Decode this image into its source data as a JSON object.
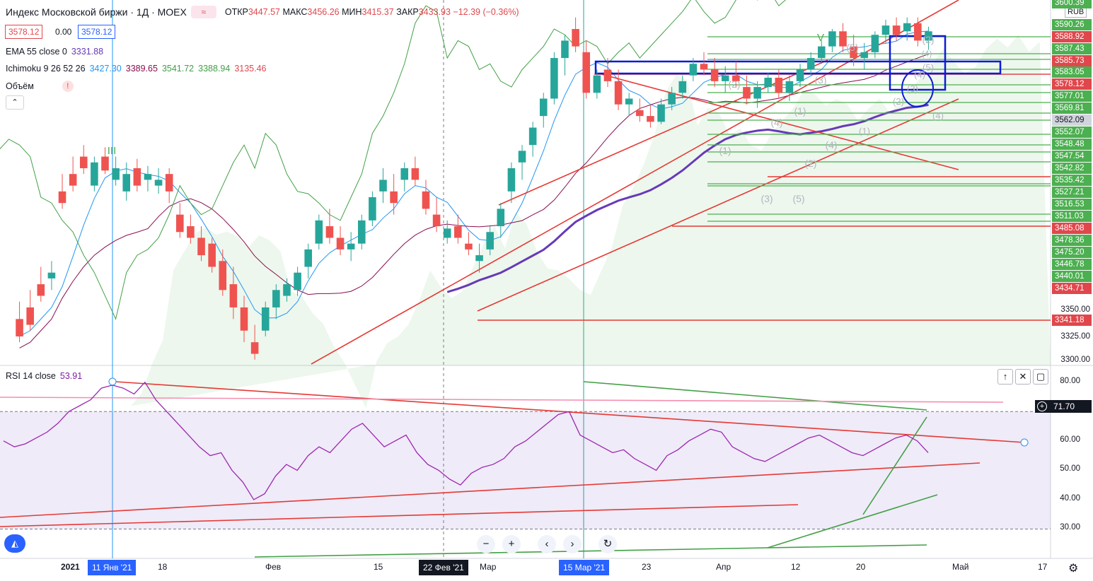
{
  "header": {
    "title": "Индекс Московской биржи · 1Д · MOEX",
    "ohlc": [
      {
        "label": "ОТКР",
        "value": "3447.57"
      },
      {
        "label": "МАКС",
        "value": "3456.26"
      },
      {
        "label": "МИН",
        "value": "3415.37"
      },
      {
        "label": "ЗАКР",
        "value": "3433.93"
      }
    ],
    "change": "−12.39 (−0.36%)",
    "bid": "3578.12",
    "spread": "0.00",
    "ask": "3578.12",
    "currency": "RUB"
  },
  "indicators": {
    "ema": {
      "label": "EMA 55 close 0",
      "value": "3331.88"
    },
    "ichimoku": {
      "label": "Ichimoku 9 26 52 26",
      "values": [
        "3427.30",
        "3389.65",
        "3541.72",
        "3388.94",
        "3135.46"
      ]
    },
    "volume": {
      "label": "Объём"
    },
    "rsi": {
      "label": "RSI 14 close",
      "value": "53.91",
      "current_tag": "71.70"
    }
  },
  "price_axis": {
    "tags": [
      {
        "value": "3600.39",
        "color": "#4caf50"
      },
      {
        "value": "3590.26",
        "color": "#4caf50"
      },
      {
        "value": "3588.92",
        "color": "#e0474c"
      },
      {
        "value": "3587.43",
        "color": "#4caf50"
      },
      {
        "value": "3585.73",
        "color": "#e0474c"
      },
      {
        "value": "3583.05",
        "color": "#4caf50"
      },
      {
        "value": "3578.12",
        "color": "#e0474c"
      },
      {
        "value": "3577.01",
        "color": "#4caf50"
      },
      {
        "value": "3569.81",
        "color": "#4caf50"
      },
      {
        "value": "3562.09",
        "color": "#d1d4dc"
      },
      {
        "value": "3552.07",
        "color": "#4caf50"
      },
      {
        "value": "3548.48",
        "color": "#4caf50"
      },
      {
        "value": "3547.54",
        "color": "#4caf50"
      },
      {
        "value": "3542.82",
        "color": "#4caf50"
      },
      {
        "value": "3535.42",
        "color": "#4caf50"
      },
      {
        "value": "3527.21",
        "color": "#4caf50"
      },
      {
        "value": "3516.53",
        "color": "#4caf50"
      },
      {
        "value": "3511.03",
        "color": "#4caf50"
      },
      {
        "value": "3485.08",
        "color": "#e0474c"
      },
      {
        "value": "3478.36",
        "color": "#4caf50"
      },
      {
        "value": "3475.20",
        "color": "#4caf50"
      },
      {
        "value": "3446.78",
        "color": "#4caf50"
      },
      {
        "value": "3440.01",
        "color": "#4caf50"
      },
      {
        "value": "3434.71",
        "color": "#e0474c"
      },
      {
        "value": "3341.18",
        "color": "#e0474c"
      }
    ],
    "plain": [
      "3350.00",
      "3325.00",
      "3300.00"
    ]
  },
  "rsi_axis": [
    "80.00",
    "70.00",
    "60.00",
    "50.00",
    "40.00",
    "30.00"
  ],
  "time_axis": {
    "labels": [
      "2021",
      "18",
      "Фев",
      "15",
      "Мар",
      "23",
      "Апр",
      "12",
      "20",
      "Май",
      "17"
    ],
    "highlights": [
      "11 Янв '21",
      "22 Фев '21",
      "15 Мар '21"
    ]
  },
  "wave_labels": [
    "III",
    "V",
    "(1)",
    "(2)",
    "(3)",
    "(4)",
    "(5)",
    "(1)",
    "(2)",
    "(3)",
    "(4)",
    "(5)",
    "(1)",
    "(2)",
    "(3)",
    "(4)",
    "(5)",
    "(2)",
    "(4)",
    "(4)"
  ],
  "chart_data": [
    {
      "type": "candlestick",
      "title": "Индекс Московской биржи · 1Д · MOEX",
      "ylim": [
        3290,
        3605
      ],
      "candles": [
        [
          3330,
          3345,
          3310,
          3315
        ],
        [
          3340,
          3355,
          3320,
          3325
        ],
        [
          3360,
          3375,
          3345,
          3350
        ],
        [
          3365,
          3380,
          3355,
          3370
        ],
        [
          3440,
          3455,
          3425,
          3430
        ],
        [
          3455,
          3470,
          3440,
          3445
        ],
        [
          3470,
          3480,
          3455,
          3460
        ],
        [
          3445,
          3470,
          3440,
          3465
        ],
        [
          3470,
          3478,
          3455,
          3458
        ],
        [
          3450,
          3470,
          3445,
          3460
        ],
        [
          3440,
          3465,
          3432,
          3455
        ],
        [
          3460,
          3468,
          3440,
          3445
        ],
        [
          3450,
          3462,
          3440,
          3455
        ],
        [
          3445,
          3460,
          3438,
          3450
        ],
        [
          3455,
          3460,
          3430,
          3440
        ],
        [
          3420,
          3430,
          3400,
          3405
        ],
        [
          3410,
          3420,
          3395,
          3400
        ],
        [
          3400,
          3410,
          3380,
          3385
        ],
        [
          3395,
          3400,
          3370,
          3375
        ],
        [
          3380,
          3390,
          3350,
          3355
        ],
        [
          3360,
          3375,
          3330,
          3340
        ],
        [
          3340,
          3350,
          3310,
          3320
        ],
        [
          3310,
          3325,
          3295,
          3300
        ],
        [
          3320,
          3345,
          3315,
          3340
        ],
        [
          3340,
          3360,
          3330,
          3355
        ],
        [
          3350,
          3365,
          3345,
          3360
        ],
        [
          3355,
          3375,
          3350,
          3370
        ],
        [
          3375,
          3395,
          3365,
          3390
        ],
        [
          3395,
          3420,
          3390,
          3415
        ],
        [
          3410,
          3425,
          3395,
          3400
        ],
        [
          3400,
          3410,
          3385,
          3390
        ],
        [
          3390,
          3405,
          3380,
          3395
        ],
        [
          3395,
          3420,
          3390,
          3415
        ],
        [
          3415,
          3440,
          3410,
          3435
        ],
        [
          3440,
          3460,
          3430,
          3450
        ],
        [
          3440,
          3455,
          3420,
          3430
        ],
        [
          3450,
          3465,
          3440,
          3460
        ],
        [
          3460,
          3470,
          3445,
          3450
        ],
        [
          3440,
          3450,
          3420,
          3425
        ],
        [
          3420,
          3435,
          3405,
          3410
        ],
        [
          3400,
          3415,
          3395,
          3408
        ],
        [
          3410,
          3420,
          3395,
          3400
        ],
        [
          3395,
          3405,
          3385,
          3390
        ],
        [
          3380,
          3395,
          3370,
          3385
        ],
        [
          3390,
          3410,
          3385,
          3405
        ],
        [
          3410,
          3430,
          3400,
          3425
        ],
        [
          3440,
          3465,
          3430,
          3460
        ],
        [
          3465,
          3480,
          3450,
          3475
        ],
        [
          3480,
          3500,
          3470,
          3495
        ],
        [
          3505,
          3525,
          3495,
          3520
        ],
        [
          3520,
          3560,
          3515,
          3555
        ],
        [
          3555,
          3575,
          3540,
          3570
        ],
        [
          3580,
          3590,
          3560,
          3565
        ],
        [
          3560,
          3570,
          3520,
          3525
        ],
        [
          3525,
          3545,
          3520,
          3540
        ],
        [
          3545,
          3555,
          3530,
          3535
        ],
        [
          3535,
          3545,
          3510,
          3515
        ],
        [
          3515,
          3525,
          3505,
          3520
        ],
        [
          3510,
          3520,
          3500,
          3505
        ],
        [
          3505,
          3515,
          3495,
          3500
        ],
        [
          3500,
          3520,
          3498,
          3515
        ],
        [
          3515,
          3530,
          3510,
          3525
        ],
        [
          3525,
          3540,
          3520,
          3535
        ],
        [
          3540,
          3555,
          3535,
          3550
        ],
        [
          3550,
          3560,
          3540,
          3545
        ],
        [
          3545,
          3555,
          3530,
          3535
        ],
        [
          3535,
          3548,
          3525,
          3540
        ],
        [
          3540,
          3552,
          3530,
          3535
        ],
        [
          3530,
          3540,
          3515,
          3520
        ],
        [
          3520,
          3535,
          3512,
          3530
        ],
        [
          3530,
          3542,
          3525,
          3538
        ],
        [
          3538,
          3545,
          3520,
          3525
        ],
        [
          3525,
          3540,
          3518,
          3535
        ],
        [
          3535,
          3550,
          3530,
          3545
        ],
        [
          3545,
          3560,
          3540,
          3555
        ],
        [
          3555,
          3570,
          3550,
          3565
        ],
        [
          3565,
          3580,
          3560,
          3578
        ],
        [
          3578,
          3585,
          3560,
          3565
        ],
        [
          3565,
          3575,
          3548,
          3555
        ],
        [
          3555,
          3568,
          3545,
          3560
        ],
        [
          3560,
          3578,
          3555,
          3575
        ],
        [
          3575,
          3588,
          3568,
          3583
        ],
        [
          3583,
          3590,
          3570,
          3575
        ],
        [
          3578,
          3590,
          3570,
          3585
        ],
        [
          3585,
          3590,
          3565,
          3570
        ],
        [
          3570,
          3582,
          3562,
          3578
        ]
      ]
    },
    {
      "type": "line",
      "title": "RSI 14 close",
      "ylim": [
        20,
        85
      ],
      "levels": [
        70,
        30
      ],
      "values": [
        60,
        58,
        59,
        61,
        63,
        66,
        70,
        72,
        74,
        78,
        79,
        78,
        76,
        80,
        74,
        70,
        66,
        62,
        58,
        55,
        56,
        50,
        46,
        40,
        42,
        48,
        52,
        50,
        55,
        58,
        56,
        60,
        64,
        66,
        62,
        58,
        60,
        62,
        56,
        52,
        50,
        47,
        45,
        49,
        51,
        52,
        54,
        58,
        60,
        63,
        66,
        69,
        70,
        62,
        60,
        58,
        56,
        57,
        54,
        52,
        50,
        55,
        57,
        60,
        62,
        64,
        63,
        58,
        56,
        54,
        53,
        55,
        57,
        59,
        61,
        62,
        60,
        58,
        56,
        55,
        57,
        59,
        61,
        62,
        60,
        56
      ]
    }
  ]
}
